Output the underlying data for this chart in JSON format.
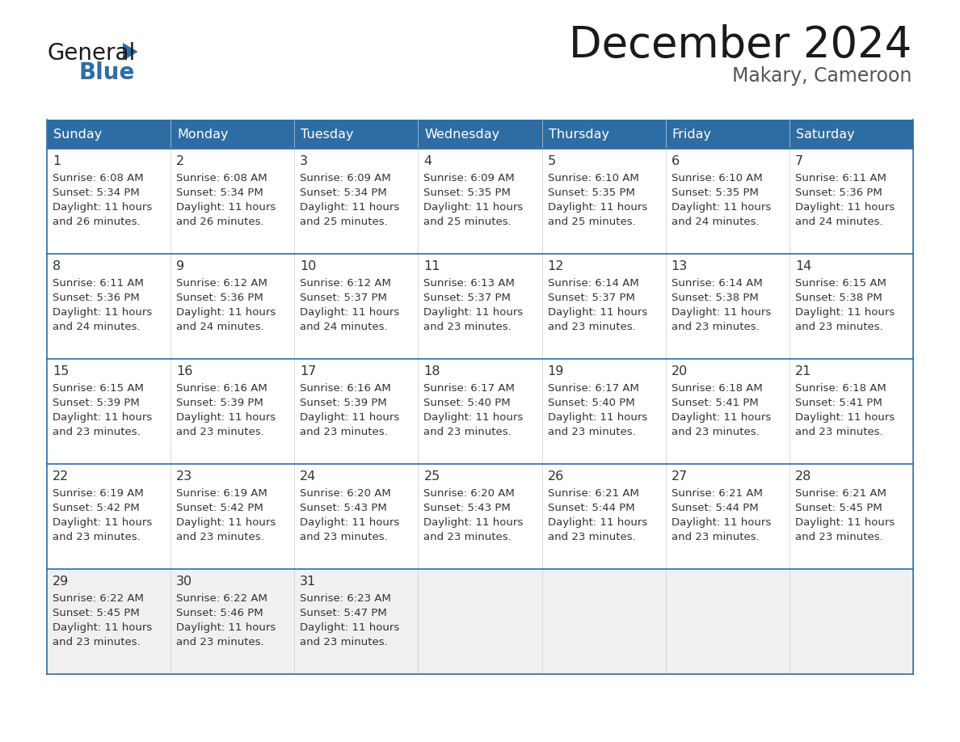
{
  "title": "December 2024",
  "subtitle": "Makary, Cameroon",
  "header_bg": "#2E6DA4",
  "header_fg": "#FFFFFF",
  "border_color": "#2E6DA4",
  "cell_bg_white": "#FFFFFF",
  "cell_bg_gray": "#F0F0F0",
  "text_color": "#333333",
  "days_of_week": [
    "Sunday",
    "Monday",
    "Tuesday",
    "Wednesday",
    "Thursday",
    "Friday",
    "Saturday"
  ],
  "logo_general_color": "#1A1A1A",
  "logo_blue_color": "#2E6DA4",
  "title_color": "#1A1A1A",
  "subtitle_color": "#555555",
  "weeks": [
    [
      {
        "day": 1,
        "sunrise": "6:08 AM",
        "sunset": "5:34 PM",
        "daylight": "11 hours",
        "daylight2": "and 26 minutes."
      },
      {
        "day": 2,
        "sunrise": "6:08 AM",
        "sunset": "5:34 PM",
        "daylight": "11 hours",
        "daylight2": "and 26 minutes."
      },
      {
        "day": 3,
        "sunrise": "6:09 AM",
        "sunset": "5:34 PM",
        "daylight": "11 hours",
        "daylight2": "and 25 minutes."
      },
      {
        "day": 4,
        "sunrise": "6:09 AM",
        "sunset": "5:35 PM",
        "daylight": "11 hours",
        "daylight2": "and 25 minutes."
      },
      {
        "day": 5,
        "sunrise": "6:10 AM",
        "sunset": "5:35 PM",
        "daylight": "11 hours",
        "daylight2": "and 25 minutes."
      },
      {
        "day": 6,
        "sunrise": "6:10 AM",
        "sunset": "5:35 PM",
        "daylight": "11 hours",
        "daylight2": "and 24 minutes."
      },
      {
        "day": 7,
        "sunrise": "6:11 AM",
        "sunset": "5:36 PM",
        "daylight": "11 hours",
        "daylight2": "and 24 minutes."
      }
    ],
    [
      {
        "day": 8,
        "sunrise": "6:11 AM",
        "sunset": "5:36 PM",
        "daylight": "11 hours",
        "daylight2": "and 24 minutes."
      },
      {
        "day": 9,
        "sunrise": "6:12 AM",
        "sunset": "5:36 PM",
        "daylight": "11 hours",
        "daylight2": "and 24 minutes."
      },
      {
        "day": 10,
        "sunrise": "6:12 AM",
        "sunset": "5:37 PM",
        "daylight": "11 hours",
        "daylight2": "and 24 minutes."
      },
      {
        "day": 11,
        "sunrise": "6:13 AM",
        "sunset": "5:37 PM",
        "daylight": "11 hours",
        "daylight2": "and 23 minutes."
      },
      {
        "day": 12,
        "sunrise": "6:14 AM",
        "sunset": "5:37 PM",
        "daylight": "11 hours",
        "daylight2": "and 23 minutes."
      },
      {
        "day": 13,
        "sunrise": "6:14 AM",
        "sunset": "5:38 PM",
        "daylight": "11 hours",
        "daylight2": "and 23 minutes."
      },
      {
        "day": 14,
        "sunrise": "6:15 AM",
        "sunset": "5:38 PM",
        "daylight": "11 hours",
        "daylight2": "and 23 minutes."
      }
    ],
    [
      {
        "day": 15,
        "sunrise": "6:15 AM",
        "sunset": "5:39 PM",
        "daylight": "11 hours",
        "daylight2": "and 23 minutes."
      },
      {
        "day": 16,
        "sunrise": "6:16 AM",
        "sunset": "5:39 PM",
        "daylight": "11 hours",
        "daylight2": "and 23 minutes."
      },
      {
        "day": 17,
        "sunrise": "6:16 AM",
        "sunset": "5:39 PM",
        "daylight": "11 hours",
        "daylight2": "and 23 minutes."
      },
      {
        "day": 18,
        "sunrise": "6:17 AM",
        "sunset": "5:40 PM",
        "daylight": "11 hours",
        "daylight2": "and 23 minutes."
      },
      {
        "day": 19,
        "sunrise": "6:17 AM",
        "sunset": "5:40 PM",
        "daylight": "11 hours",
        "daylight2": "and 23 minutes."
      },
      {
        "day": 20,
        "sunrise": "6:18 AM",
        "sunset": "5:41 PM",
        "daylight": "11 hours",
        "daylight2": "and 23 minutes."
      },
      {
        "day": 21,
        "sunrise": "6:18 AM",
        "sunset": "5:41 PM",
        "daylight": "11 hours",
        "daylight2": "and 23 minutes."
      }
    ],
    [
      {
        "day": 22,
        "sunrise": "6:19 AM",
        "sunset": "5:42 PM",
        "daylight": "11 hours",
        "daylight2": "and 23 minutes."
      },
      {
        "day": 23,
        "sunrise": "6:19 AM",
        "sunset": "5:42 PM",
        "daylight": "11 hours",
        "daylight2": "and 23 minutes."
      },
      {
        "day": 24,
        "sunrise": "6:20 AM",
        "sunset": "5:43 PM",
        "daylight": "11 hours",
        "daylight2": "and 23 minutes."
      },
      {
        "day": 25,
        "sunrise": "6:20 AM",
        "sunset": "5:43 PM",
        "daylight": "11 hours",
        "daylight2": "and 23 minutes."
      },
      {
        "day": 26,
        "sunrise": "6:21 AM",
        "sunset": "5:44 PM",
        "daylight": "11 hours",
        "daylight2": "and 23 minutes."
      },
      {
        "day": 27,
        "sunrise": "6:21 AM",
        "sunset": "5:44 PM",
        "daylight": "11 hours",
        "daylight2": "and 23 minutes."
      },
      {
        "day": 28,
        "sunrise": "6:21 AM",
        "sunset": "5:45 PM",
        "daylight": "11 hours",
        "daylight2": "and 23 minutes."
      }
    ],
    [
      {
        "day": 29,
        "sunrise": "6:22 AM",
        "sunset": "5:45 PM",
        "daylight": "11 hours",
        "daylight2": "and 23 minutes."
      },
      {
        "day": 30,
        "sunrise": "6:22 AM",
        "sunset": "5:46 PM",
        "daylight": "11 hours",
        "daylight2": "and 23 minutes."
      },
      {
        "day": 31,
        "sunrise": "6:23 AM",
        "sunset": "5:47 PM",
        "daylight": "11 hours",
        "daylight2": "and 23 minutes."
      },
      null,
      null,
      null,
      null
    ]
  ]
}
